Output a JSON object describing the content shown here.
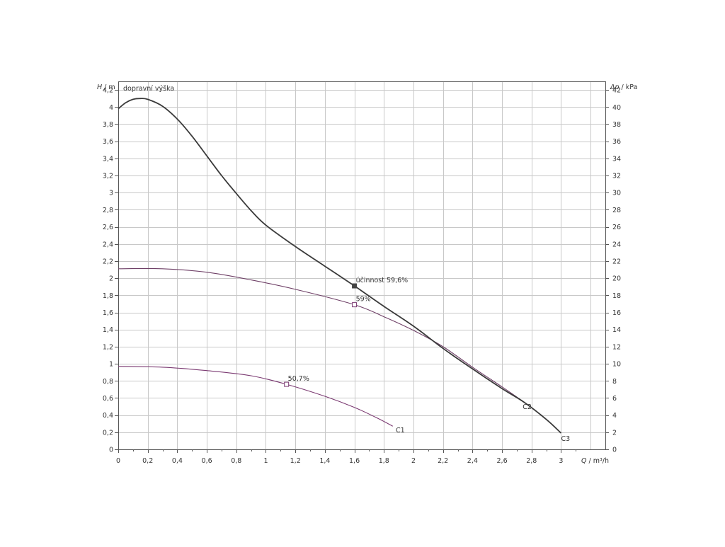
{
  "chart_data": {
    "type": "line",
    "title": "",
    "left_axis": {
      "label_var": "H",
      "label_unit": " / m",
      "range": [
        0,
        4.3
      ],
      "ticks": [
        0,
        0.2,
        0.4,
        0.6,
        0.8,
        1,
        1.2,
        1.4,
        1.6,
        1.8,
        2,
        2.2,
        2.4,
        2.6,
        2.8,
        3,
        3.2,
        3.4,
        3.6,
        3.8,
        4,
        4.2
      ],
      "tick_labels": [
        "0",
        "0,2",
        "0,4",
        "0,6",
        "0,8",
        "1",
        "1,2",
        "1,4",
        "1,6",
        "1,8",
        "2",
        "2,2",
        "2,4",
        "2,6",
        "2,8",
        "3",
        "3,2",
        "3,4",
        "3,6",
        "3,8",
        "4",
        "4,2"
      ]
    },
    "right_axis": {
      "label_var": "Δp",
      "label_unit": " / kPa",
      "range": [
        0,
        43
      ],
      "ticks": [
        0,
        2,
        4,
        6,
        8,
        10,
        12,
        14,
        16,
        18,
        20,
        22,
        24,
        26,
        28,
        30,
        32,
        34,
        36,
        38,
        40,
        42
      ],
      "tick_labels": [
        "0",
        "2",
        "4",
        "6",
        "8",
        "10",
        "12",
        "14",
        "16",
        "18",
        "20",
        "22",
        "24",
        "26",
        "28",
        "30",
        "32",
        "34",
        "36",
        "38",
        "40",
        "42"
      ]
    },
    "x_axis": {
      "label_var": "Q",
      "label_unit": " / m³/h",
      "range": [
        0,
        3.3
      ],
      "ticks": [
        0,
        0.2,
        0.4,
        0.6,
        0.8,
        1,
        1.2,
        1.4,
        1.6,
        1.8,
        2,
        2.2,
        2.4,
        2.6,
        2.8,
        3
      ],
      "tick_labels": [
        "0",
        "0,2",
        "0,4",
        "0,6",
        "0,8",
        "1",
        "1,2",
        "1,4",
        "1,6",
        "1,8",
        "2",
        "2,2",
        "2,4",
        "2,6",
        "2,8",
        "3"
      ]
    },
    "grid": true,
    "inner_label": "dopravní  výška",
    "series": [
      {
        "name": "C1",
        "color": "#7b3a72",
        "points": [
          [
            0,
            0.97
          ],
          [
            0.3,
            0.96
          ],
          [
            0.6,
            0.92
          ],
          [
            0.9,
            0.86
          ],
          [
            1.14,
            0.76
          ],
          [
            1.4,
            0.62
          ],
          [
            1.6,
            0.49
          ],
          [
            1.75,
            0.37
          ],
          [
            1.86,
            0.27
          ]
        ]
      },
      {
        "name": "C2",
        "color": "#6e3f66",
        "points": [
          [
            0,
            2.11
          ],
          [
            0.3,
            2.11
          ],
          [
            0.6,
            2.07
          ],
          [
            0.9,
            1.98
          ],
          [
            1.2,
            1.87
          ],
          [
            1.6,
            1.69
          ],
          [
            1.8,
            1.55
          ],
          [
            2.0,
            1.39
          ],
          [
            2.2,
            1.2
          ],
          [
            2.4,
            0.96
          ],
          [
            2.6,
            0.73
          ],
          [
            2.76,
            0.54
          ]
        ]
      },
      {
        "name": "C3",
        "color": "#3a3a3a",
        "points": [
          [
            0,
            3.98
          ],
          [
            0.05,
            4.05
          ],
          [
            0.1,
            4.09
          ],
          [
            0.15,
            4.1
          ],
          [
            0.2,
            4.09
          ],
          [
            0.3,
            4.01
          ],
          [
            0.4,
            3.86
          ],
          [
            0.5,
            3.66
          ],
          [
            0.6,
            3.43
          ],
          [
            0.7,
            3.2
          ],
          [
            0.8,
            2.99
          ],
          [
            0.9,
            2.79
          ],
          [
            1.0,
            2.62
          ],
          [
            1.2,
            2.37
          ],
          [
            1.4,
            2.14
          ],
          [
            1.6,
            1.91
          ],
          [
            1.8,
            1.67
          ],
          [
            2.0,
            1.44
          ],
          [
            2.2,
            1.18
          ],
          [
            2.4,
            0.94
          ],
          [
            2.6,
            0.71
          ],
          [
            2.75,
            0.55
          ],
          [
            2.9,
            0.35
          ],
          [
            3.0,
            0.19
          ]
        ]
      }
    ],
    "curve_labels": [
      {
        "series": "C1",
        "text": "C1",
        "x": 1.88,
        "y": 0.2
      },
      {
        "series": "C2",
        "text": "C2",
        "x": 2.74,
        "y": 0.47
      },
      {
        "series": "C3",
        "text": "C3",
        "x": 3.0,
        "y": 0.1
      }
    ],
    "annotations": [
      {
        "text": "účinnost  59,6%",
        "x": 1.6,
        "y": 1.91,
        "color": "#333333",
        "marker": "filled",
        "marker_color": "#444444"
      },
      {
        "text": "59%",
        "x": 1.6,
        "y": 1.69,
        "color": "#7b3a72",
        "marker": "open",
        "marker_color": "#7b3a72"
      },
      {
        "text": "50,7%",
        "x": 1.14,
        "y": 0.76,
        "color": "#7b3a72",
        "marker": "open",
        "marker_color": "#7b3a72"
      }
    ]
  }
}
